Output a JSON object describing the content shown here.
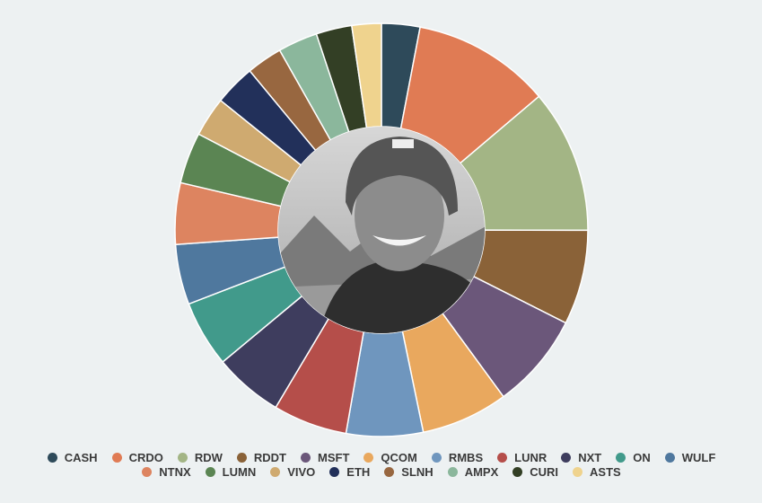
{
  "chart_data": {
    "type": "pie",
    "donut": true,
    "categories": [
      "CASH",
      "CRDO",
      "RDW",
      "RDDT",
      "MSFT",
      "QCOM",
      "RMBS",
      "LUNR",
      "NXT",
      "ON",
      "WULF",
      "NTNX",
      "LUMN",
      "VIVO",
      "ETH",
      "SLNH",
      "AMPX",
      "CURI",
      "ASTS"
    ],
    "values": [
      3,
      10.8,
      11.2,
      7.4,
      7.5,
      6.8,
      6,
      5.8,
      5.4,
      5.2,
      4.7,
      4.8,
      4,
      3.1,
      3.2,
      2.8,
      3.1,
      2.8,
      2.3
    ],
    "colors": [
      "#2e4a5a",
      "#e07b54",
      "#a3b585",
      "#8a6238",
      "#6b577a",
      "#e9a85e",
      "#6f96be",
      "#b54e4a",
      "#3e3d5e",
      "#419a8b",
      "#4f789e",
      "#dd8460",
      "#5b8553",
      "#cfaa70",
      "#22305a",
      "#986740",
      "#8bb79c",
      "#333f25",
      "#efd38e"
    ],
    "legend": "bottom"
  }
}
